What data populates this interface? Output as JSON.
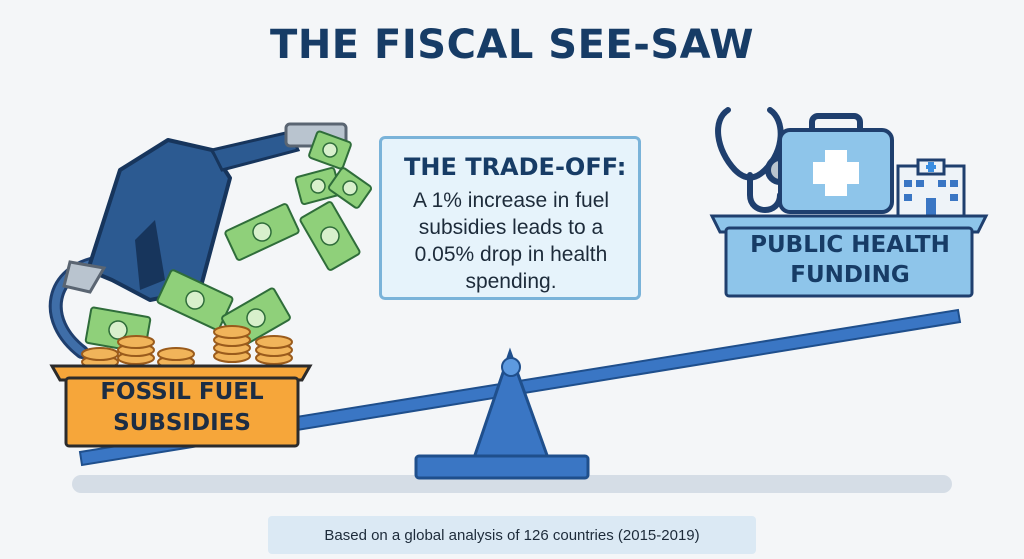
{
  "title": "THE FISCAL SEE-SAW",
  "tradeoff": {
    "heading": "THE TRADE-OFF:",
    "body": "A 1% increase in fuel subsidies leads to a 0.05% drop in health spending."
  },
  "left_label": "FOSSIL FUEL SUBSIDIES",
  "right_label": "PUBLIC HEALTH FUNDING",
  "footer": "Based on a global analysis of 126 countries (2015-2019)",
  "colors": {
    "title": "#173c66",
    "fuel_box": "#f6a63a",
    "health_box": "#8ec5ea",
    "beam": "#3a76c4",
    "fulcrum": "#3a76c4",
    "money": "#8fd07a",
    "coins": "#f1b45a"
  },
  "icons": [
    "fuel-pump-icon",
    "money-bill-icon",
    "coin-stack-icon",
    "stethoscope-icon",
    "medical-kit-icon",
    "hospital-icon"
  ]
}
